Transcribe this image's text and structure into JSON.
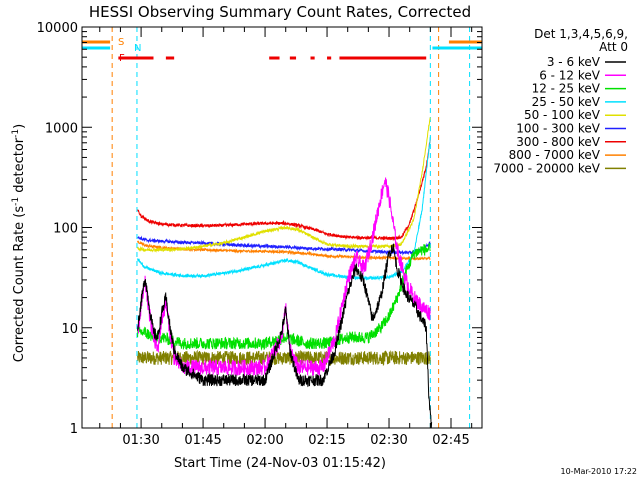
{
  "chart_data": {
    "type": "line",
    "title": "HESSI Observing Summary Count Rates, Corrected",
    "xlabel": "Start Time (24-Nov-03 01:15:42)",
    "ylabel_main": "Corrected Count Rate (s",
    "ylabel_sup": "-1",
    "ylabel_mid": " detector",
    "ylabel_end": ")",
    "y_scale": "log",
    "ylim": [
      1,
      10000
    ],
    "xlim": [
      "01:15:42",
      "02:52:30"
    ],
    "y_ticks": [
      {
        "value": 1,
        "label": "1"
      },
      {
        "value": 10,
        "label": "10"
      },
      {
        "value": 100,
        "label": "100"
      },
      {
        "value": 1000,
        "label": "1000"
      },
      {
        "value": 10000,
        "label": "10000"
      }
    ],
    "x_ticks": [
      {
        "value": "01:30",
        "label": "01:30"
      },
      {
        "value": "01:45",
        "label": "01:45"
      },
      {
        "value": "02:00",
        "label": "02:00"
      },
      {
        "value": "02:15",
        "label": "02:15"
      },
      {
        "value": "02:30",
        "label": "02:30"
      },
      {
        "value": "02:45",
        "label": "02:45"
      }
    ],
    "legend_title_1": "Det 1,3,4,5,6,9,",
    "legend_title_2": "Att 0",
    "legend_placement": "right",
    "timestamp": "10-Mar-2010 17:22",
    "flags": [
      {
        "letter": "S",
        "color": "#ff8000"
      },
      {
        "letter": "N",
        "color": "#00e0ff"
      },
      {
        "letter": "F",
        "color": "#ee0000"
      }
    ],
    "flag_bars": {
      "S": [
        [
          "01:15:42",
          "01:22:30"
        ],
        [
          "02:44:30",
          "02:52:30"
        ]
      ],
      "N": [
        [
          "01:15:42",
          "01:22:30"
        ],
        [
          "02:40:30",
          "02:52:30"
        ]
      ],
      "F": [
        [
          "01:24:30",
          "01:33:00"
        ],
        [
          "01:36:00",
          "01:38:00"
        ],
        [
          "02:01:00",
          "02:03:30"
        ],
        [
          "02:06:00",
          "02:07:30"
        ],
        [
          "02:11:00",
          "02:12:00"
        ],
        [
          "02:15:00",
          "02:16:00"
        ],
        [
          "02:18:00",
          "02:39:00"
        ]
      ]
    },
    "vlines": [
      {
        "time": "01:23:00",
        "color": "#ff8000"
      },
      {
        "time": "01:29:00",
        "color": "#00e0ff"
      },
      {
        "time": "02:40:00",
        "color": "#00e0ff"
      },
      {
        "time": "02:42:00",
        "color": "#ff8000"
      },
      {
        "time": "02:49:30",
        "color": "#00e0ff"
      }
    ],
    "series": [
      {
        "name": "3 - 6 keV",
        "color": "#000000",
        "noise": 0.06,
        "points": [
          [
            "01:29:10",
            10
          ],
          [
            "01:30:00",
            18
          ],
          [
            "01:31:00",
            32
          ],
          [
            "01:32:00",
            16
          ],
          [
            "01:33:00",
            9
          ],
          [
            "01:34:00",
            8
          ],
          [
            "01:35:00",
            14
          ],
          [
            "01:36:00",
            20
          ],
          [
            "01:37:00",
            10
          ],
          [
            "01:38:00",
            6
          ],
          [
            "01:40:00",
            4
          ],
          [
            "01:45:00",
            3
          ],
          [
            "01:50:00",
            3
          ],
          [
            "02:00:00",
            3
          ],
          [
            "02:04:00",
            9
          ],
          [
            "02:05:00",
            15
          ],
          [
            "02:06:00",
            6
          ],
          [
            "02:08:00",
            3
          ],
          [
            "02:14:00",
            3
          ],
          [
            "02:17:00",
            6
          ],
          [
            "02:20:00",
            22
          ],
          [
            "02:22:00",
            40
          ],
          [
            "02:24:00",
            28
          ],
          [
            "02:26:00",
            12
          ],
          [
            "02:28:00",
            20
          ],
          [
            "02:30:00",
            55
          ],
          [
            "02:31:00",
            65
          ],
          [
            "02:32:00",
            38
          ],
          [
            "02:34:00",
            22
          ],
          [
            "02:36:00",
            17
          ],
          [
            "02:38:00",
            12
          ],
          [
            "02:39:00",
            10
          ],
          [
            "02:39:40",
            2
          ],
          [
            "02:40:00",
            1.4
          ],
          [
            "02:40:20",
            1
          ]
        ]
      },
      {
        "name": "6 - 12 keV",
        "color": "#ff00ff",
        "noise": 0.08,
        "points": [
          [
            "01:29:10",
            9
          ],
          [
            "01:30:00",
            16
          ],
          [
            "01:31:00",
            28
          ],
          [
            "01:32:00",
            14
          ],
          [
            "01:33:00",
            8
          ],
          [
            "01:34:00",
            6
          ],
          [
            "01:35:00",
            12
          ],
          [
            "01:36:00",
            18
          ],
          [
            "01:37:00",
            9
          ],
          [
            "01:38:00",
            5
          ],
          [
            "01:40:00",
            4
          ],
          [
            "01:45:00",
            4
          ],
          [
            "02:00:00",
            4
          ],
          [
            "02:04:00",
            8
          ],
          [
            "02:05:00",
            16
          ],
          [
            "02:06:00",
            6
          ],
          [
            "02:08:00",
            4
          ],
          [
            "02:14:00",
            4
          ],
          [
            "02:17:00",
            8
          ],
          [
            "02:20:00",
            30
          ],
          [
            "02:22:00",
            50
          ],
          [
            "02:24:00",
            38
          ],
          [
            "02:26:00",
            80
          ],
          [
            "02:28:00",
            200
          ],
          [
            "02:29:00",
            300
          ],
          [
            "02:30:00",
            200
          ],
          [
            "02:31:00",
            110
          ],
          [
            "02:32:00",
            60
          ],
          [
            "02:34:00",
            30
          ],
          [
            "02:36:00",
            20
          ],
          [
            "02:38:00",
            16
          ],
          [
            "02:40:00",
            14
          ]
        ]
      },
      {
        "name": "12 - 25 keV",
        "color": "#00e000",
        "noise": 0.06,
        "points": [
          [
            "01:29:10",
            9
          ],
          [
            "01:31:00",
            9
          ],
          [
            "01:33:00",
            8
          ],
          [
            "01:35:00",
            8
          ],
          [
            "01:40:00",
            7
          ],
          [
            "01:45:00",
            7
          ],
          [
            "02:00:00",
            7
          ],
          [
            "02:05:00",
            8
          ],
          [
            "02:10:00",
            7
          ],
          [
            "02:15:00",
            7
          ],
          [
            "02:20:00",
            8
          ],
          [
            "02:25:00",
            8
          ],
          [
            "02:28:00",
            10
          ],
          [
            "02:30:00",
            13
          ],
          [
            "02:32:00",
            20
          ],
          [
            "02:34:00",
            35
          ],
          [
            "02:36:00",
            55
          ],
          [
            "02:38:00",
            60
          ],
          [
            "02:40:00",
            60
          ]
        ]
      },
      {
        "name": "25 - 50 keV",
        "color": "#00e0ff",
        "noise": 0.015,
        "points": [
          [
            "01:29:10",
            48
          ],
          [
            "01:31:00",
            40
          ],
          [
            "01:35:00",
            35
          ],
          [
            "01:40:00",
            33
          ],
          [
            "01:45:00",
            33
          ],
          [
            "01:50:00",
            35
          ],
          [
            "01:55:00",
            38
          ],
          [
            "02:00:00",
            42
          ],
          [
            "02:05:00",
            47
          ],
          [
            "02:08:00",
            45
          ],
          [
            "02:12:00",
            38
          ],
          [
            "02:15:00",
            34
          ],
          [
            "02:20:00",
            32
          ],
          [
            "02:25:00",
            31
          ],
          [
            "02:30:00",
            32
          ],
          [
            "02:33:00",
            36
          ],
          [
            "02:36:00",
            55
          ],
          [
            "02:38:00",
            150
          ],
          [
            "02:39:00",
            350
          ],
          [
            "02:40:00",
            800
          ]
        ]
      },
      {
        "name": "50 - 100 keV",
        "color": "#e0e000",
        "noise": 0.015,
        "points": [
          [
            "01:29:10",
            62
          ],
          [
            "01:31:00",
            60
          ],
          [
            "01:35:00",
            60
          ],
          [
            "01:40:00",
            61
          ],
          [
            "01:45:00",
            65
          ],
          [
            "01:50:00",
            70
          ],
          [
            "01:55:00",
            80
          ],
          [
            "02:00:00",
            92
          ],
          [
            "02:05:00",
            100
          ],
          [
            "02:08:00",
            95
          ],
          [
            "02:12:00",
            78
          ],
          [
            "02:15:00",
            68
          ],
          [
            "02:20:00",
            65
          ],
          [
            "02:25:00",
            65
          ],
          [
            "02:30:00",
            65
          ],
          [
            "02:33:00",
            68
          ],
          [
            "02:36:00",
            120
          ],
          [
            "02:38:00",
            350
          ],
          [
            "02:40:00",
            1300
          ]
        ]
      },
      {
        "name": "100 - 300 keV",
        "color": "#2020ff",
        "noise": 0.015,
        "points": [
          [
            "01:29:10",
            80
          ],
          [
            "01:31:00",
            75
          ],
          [
            "01:35:00",
            73
          ],
          [
            "01:40:00",
            71
          ],
          [
            "01:45:00",
            70
          ],
          [
            "01:50:00",
            68
          ],
          [
            "01:55:00",
            66
          ],
          [
            "02:00:00",
            65
          ],
          [
            "02:05:00",
            64
          ],
          [
            "02:10:00",
            62
          ],
          [
            "02:15:00",
            61
          ],
          [
            "02:20:00",
            60
          ],
          [
            "02:25:00",
            58
          ],
          [
            "02:30:00",
            57
          ],
          [
            "02:35:00",
            56
          ],
          [
            "02:38:00",
            60
          ],
          [
            "02:40:00",
            70
          ]
        ]
      },
      {
        "name": "300 - 800 keV",
        "color": "#ee0000",
        "noise": 0.015,
        "points": [
          [
            "01:29:10",
            150
          ],
          [
            "01:30:00",
            130
          ],
          [
            "01:32:00",
            115
          ],
          [
            "01:35:00",
            108
          ],
          [
            "01:40:00",
            105
          ],
          [
            "01:45:00",
            104
          ],
          [
            "01:50:00",
            105
          ],
          [
            "01:55:00",
            108
          ],
          [
            "02:00:00",
            110
          ],
          [
            "02:05:00",
            110
          ],
          [
            "02:08:00",
            105
          ],
          [
            "02:12:00",
            95
          ],
          [
            "02:15:00",
            86
          ],
          [
            "02:20:00",
            80
          ],
          [
            "02:25:00",
            79
          ],
          [
            "02:30:00",
            78
          ],
          [
            "02:33:00",
            80
          ],
          [
            "02:35:00",
            110
          ],
          [
            "02:37:00",
            200
          ],
          [
            "02:39:00",
            400
          ],
          [
            "02:40:00",
            780
          ]
        ]
      },
      {
        "name": "800 - 7000 keV",
        "color": "#ff8000",
        "noise": 0.012,
        "points": [
          [
            "01:29:10",
            72
          ],
          [
            "01:31:00",
            66
          ],
          [
            "01:35:00",
            63
          ],
          [
            "01:40:00",
            61
          ],
          [
            "01:45:00",
            60
          ],
          [
            "01:50:00",
            59
          ],
          [
            "01:55:00",
            58
          ],
          [
            "02:00:00",
            58
          ],
          [
            "02:05:00",
            57
          ],
          [
            "02:10:00",
            55
          ],
          [
            "02:15:00",
            52
          ],
          [
            "02:20:00",
            51
          ],
          [
            "02:25:00",
            50
          ],
          [
            "02:30:00",
            50
          ],
          [
            "02:35:00",
            49
          ],
          [
            "02:40:00",
            49
          ]
        ]
      },
      {
        "name": "7000 - 20000 keV",
        "color": "#808000",
        "noise": 0.07,
        "points": [
          [
            "01:29:10",
            5
          ],
          [
            "01:35:00",
            5
          ],
          [
            "01:45:00",
            5
          ],
          [
            "01:55:00",
            5
          ],
          [
            "02:05:00",
            5
          ],
          [
            "02:15:00",
            5
          ],
          [
            "02:25:00",
            5
          ],
          [
            "02:35:00",
            5
          ],
          [
            "02:40:00",
            5
          ]
        ]
      }
    ]
  }
}
